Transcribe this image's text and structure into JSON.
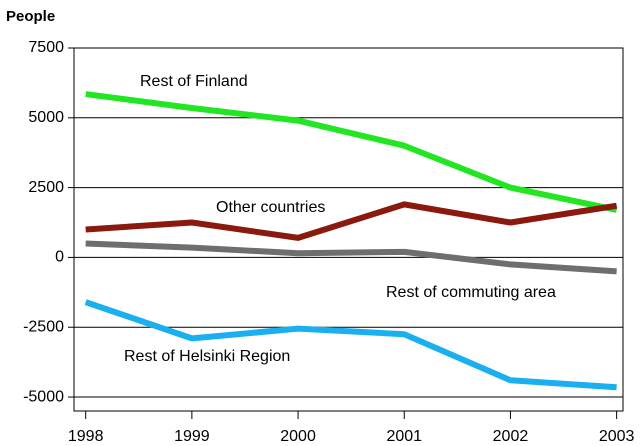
{
  "chart_data": {
    "type": "line",
    "y_label": "People",
    "x": [
      1998,
      1999,
      2000,
      2001,
      2002,
      2003
    ],
    "xlim": [
      1997.89,
      2003.06
    ],
    "xticks": [
      1998,
      1999,
      2000,
      2001,
      2002,
      2003
    ],
    "ylim": [
      -5500,
      7500
    ],
    "yticks": [
      7500,
      5000,
      2500,
      0,
      -2500,
      -5000
    ],
    "grid": true,
    "series": [
      {
        "name": "Rest of Finland",
        "color": "#22e622",
        "values": [
          5850,
          5350,
          4900,
          4000,
          2500,
          1700
        ]
      },
      {
        "name": "Other countries",
        "color": "#8b1a0e",
        "values": [
          1000,
          1250,
          700,
          1900,
          1250,
          1850
        ]
      },
      {
        "name": "Rest of commuting area",
        "color": "#6e6e6e",
        "values": [
          500,
          350,
          150,
          200,
          -250,
          -500
        ]
      },
      {
        "name": "Rest of Helsinki Region",
        "color": "#1ab0f0",
        "values": [
          -1600,
          -2900,
          -2550,
          -2750,
          -4400,
          -4650
        ]
      }
    ]
  }
}
